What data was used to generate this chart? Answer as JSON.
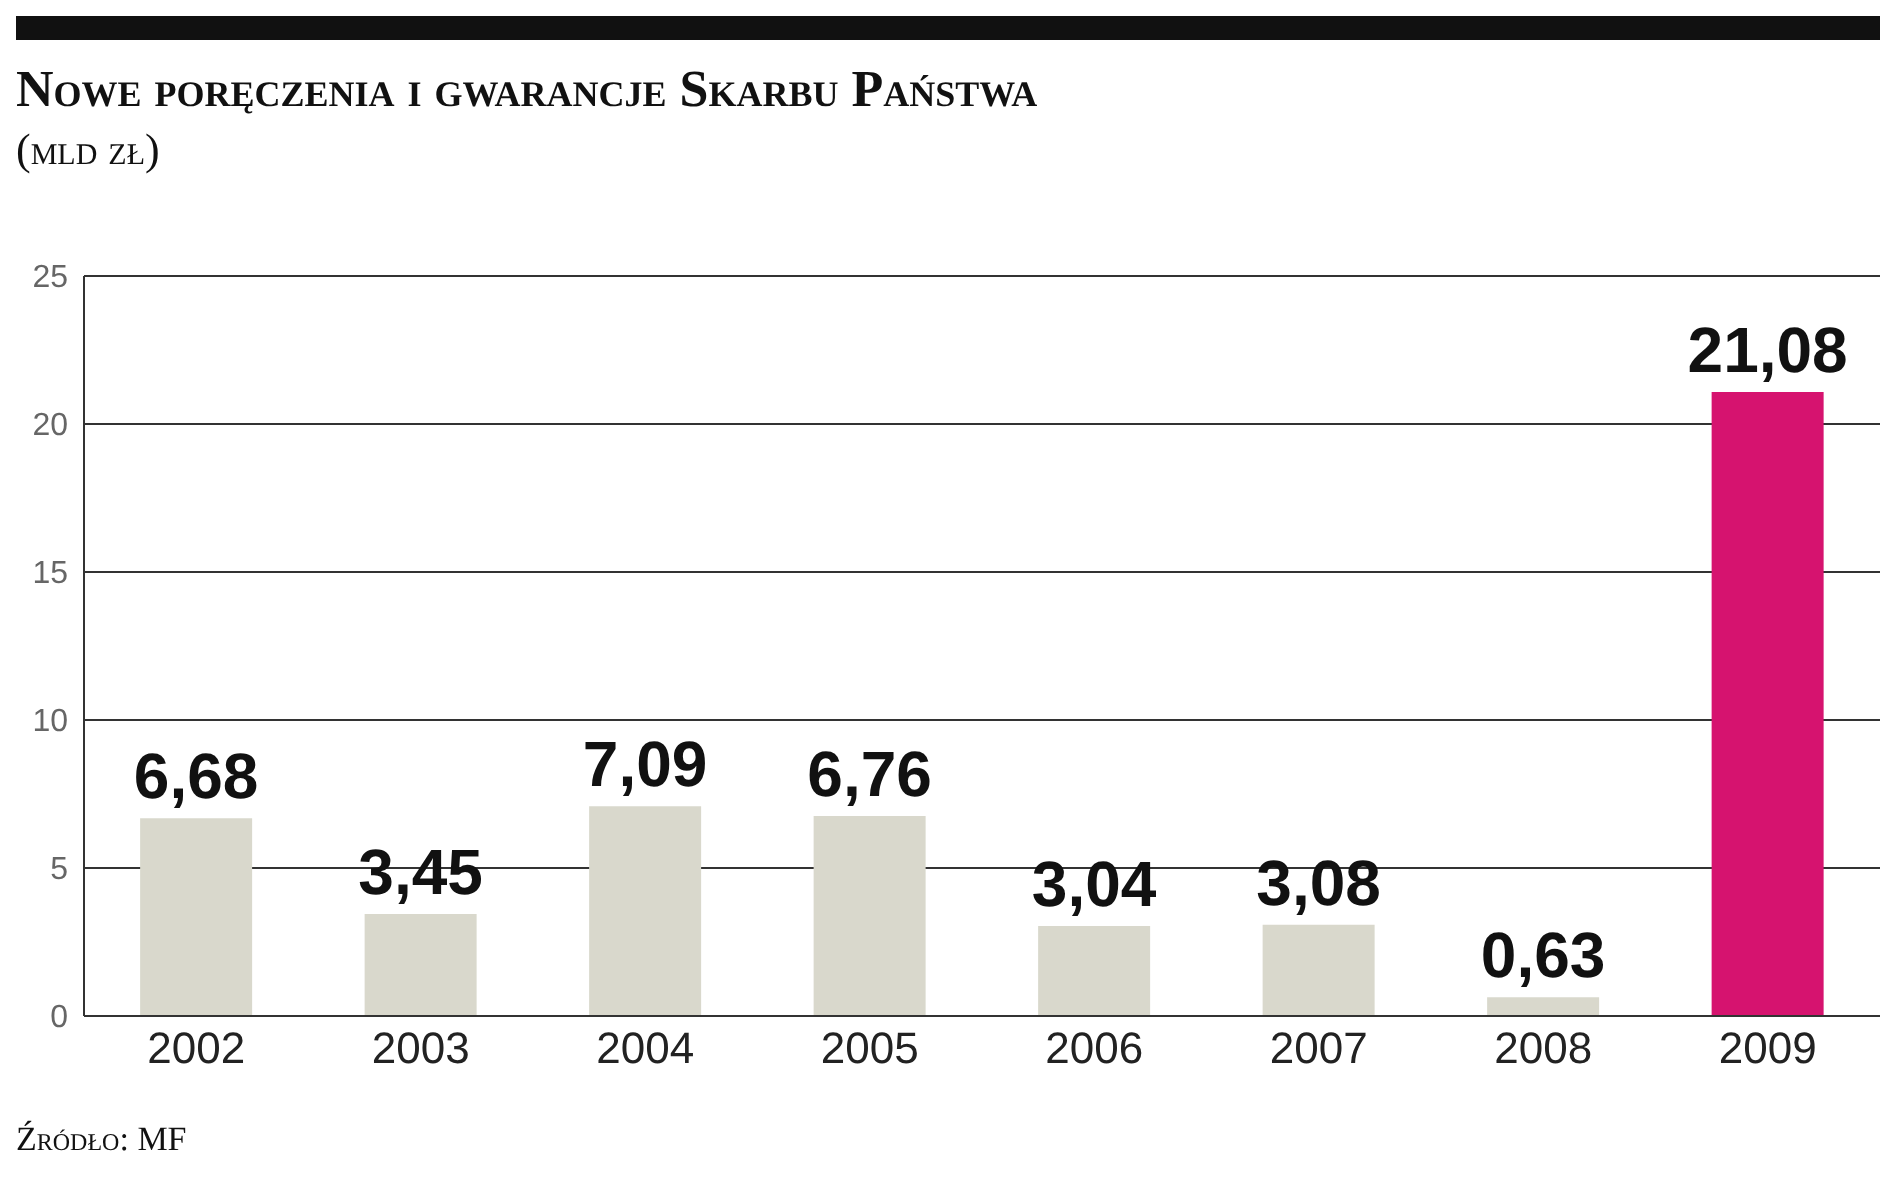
{
  "chart_data": {
    "type": "bar",
    "title": "Nowe poręczenia i gwarancje Skarbu Państwa",
    "subtitle": "(mld zł)",
    "categories": [
      "2002",
      "2003",
      "2004",
      "2005",
      "2006",
      "2007",
      "2008",
      "2009"
    ],
    "values": [
      6.68,
      3.45,
      7.09,
      6.76,
      3.04,
      3.08,
      0.63,
      21.08
    ],
    "colors": [
      "#d9d8cc",
      "#d9d8cc",
      "#d9d8cc",
      "#d9d8cc",
      "#d9d8cc",
      "#d9d8cc",
      "#d9d8cc",
      "#d6136f"
    ],
    "value_labels": [
      "6,68",
      "3,45",
      "7,09",
      "6,76",
      "3,04",
      "3,08",
      "0,63",
      "21,08"
    ],
    "ylim": [
      0,
      25
    ],
    "yticks": [
      0,
      5,
      10,
      15,
      20,
      25
    ],
    "grid": "y",
    "annotations": [
      "Źródło: MF"
    ]
  }
}
